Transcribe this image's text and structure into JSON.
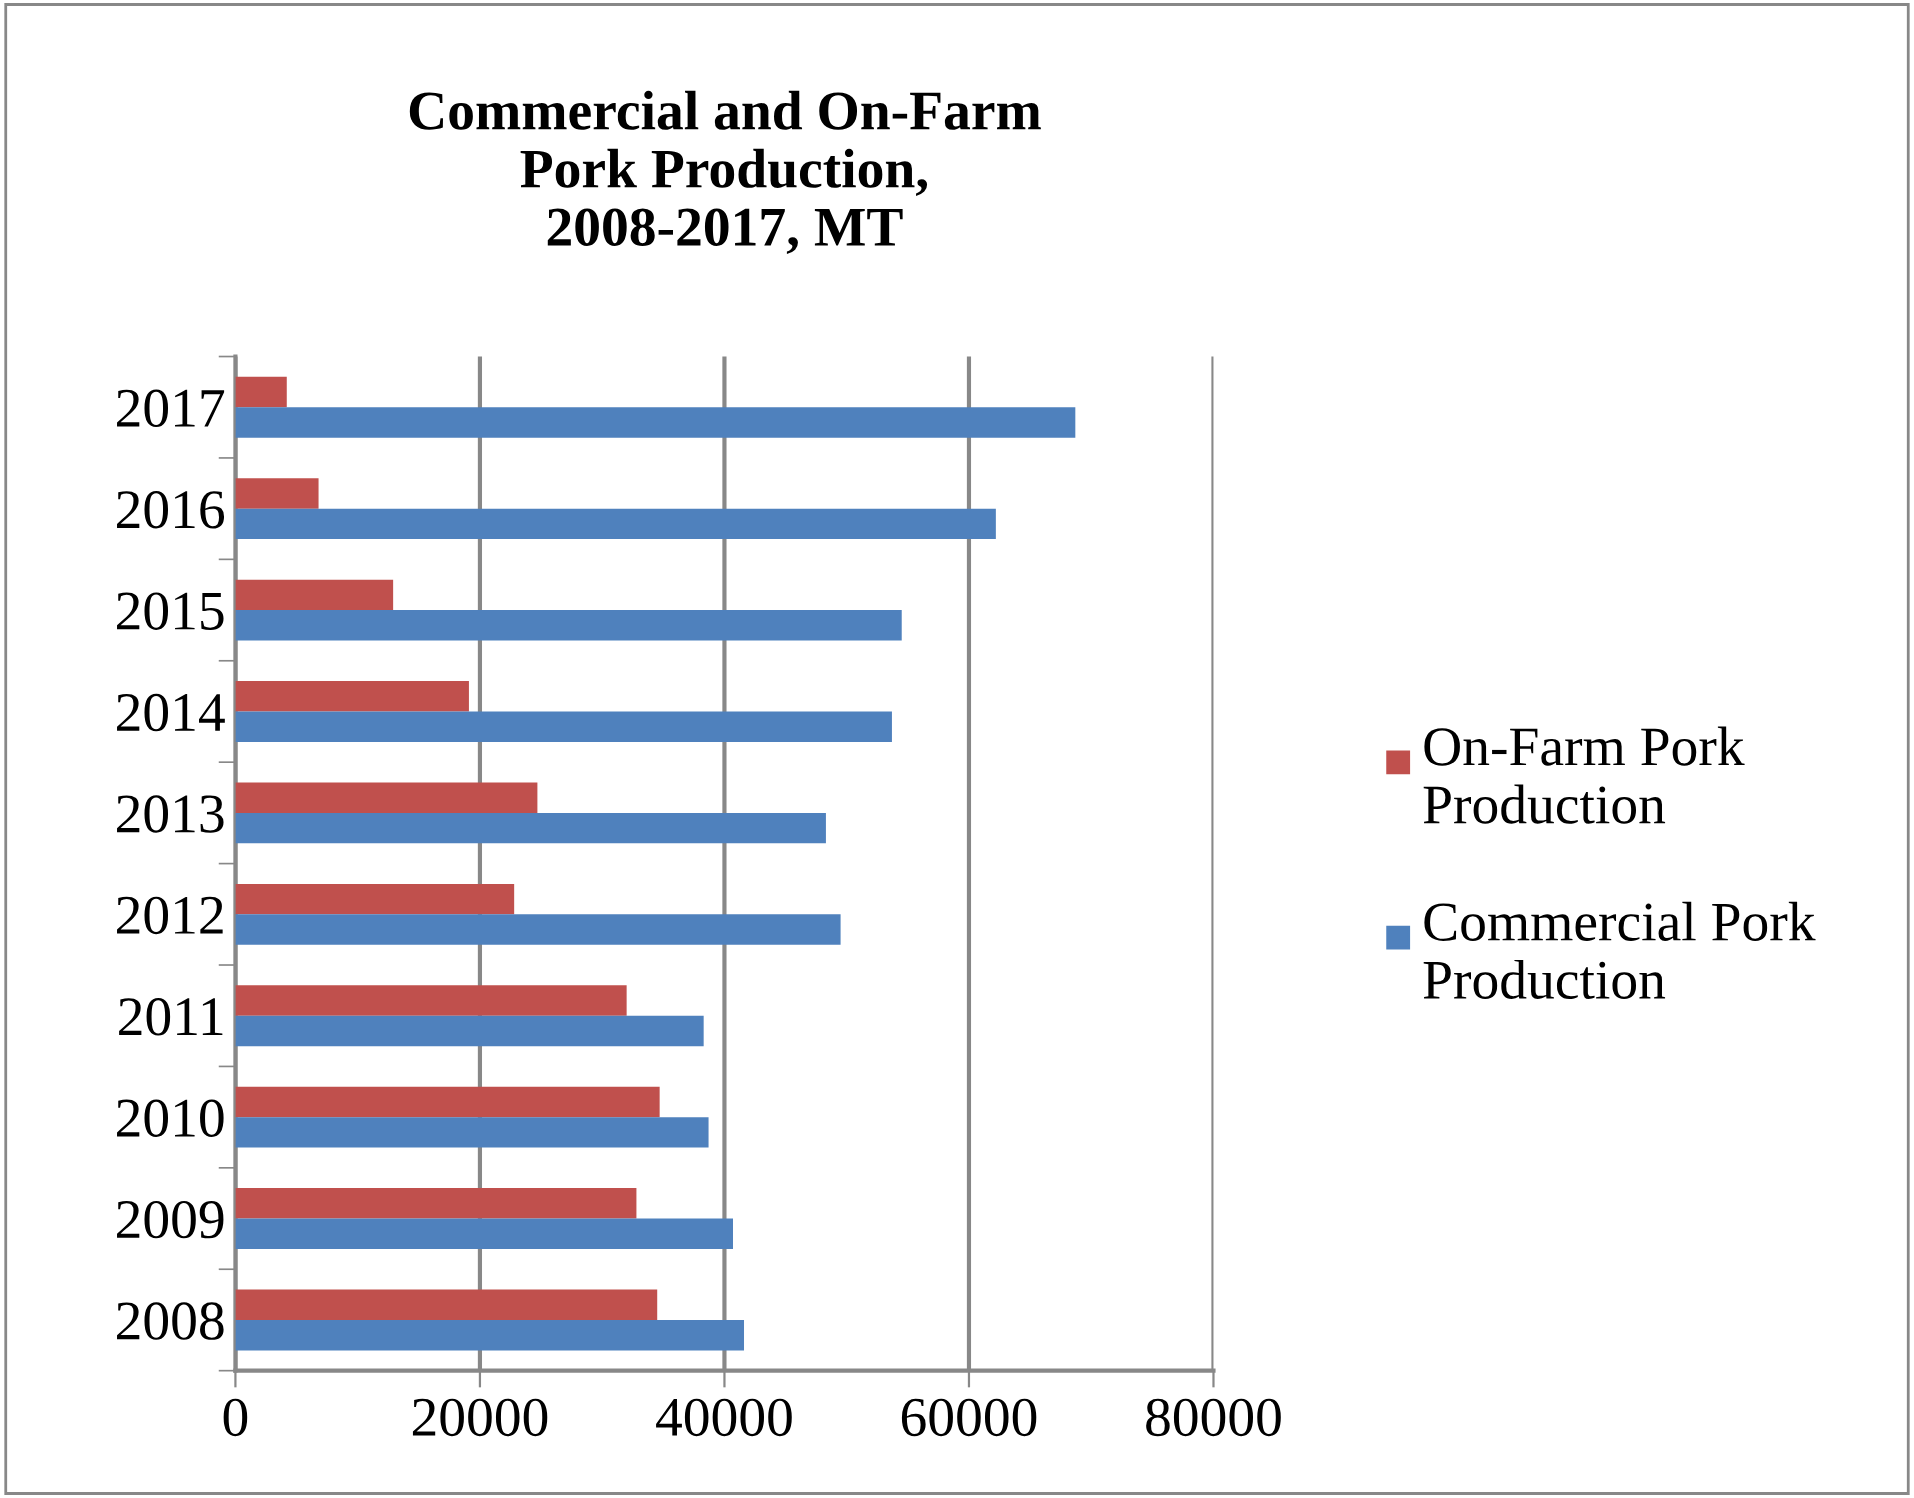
{
  "chart_data": {
    "type": "bar",
    "orientation": "horizontal",
    "title": "Commercial and On-Farm\nPork Production,\n2008-2017, MT",
    "categories": [
      "2017",
      "2016",
      "2015",
      "2014",
      "2013",
      "2012",
      "2011",
      "2010",
      "2009",
      "2008"
    ],
    "series": [
      {
        "name": "On-Farm Pork Production",
        "color": "#c0504d",
        "values": [
          4200,
          6800,
          12900,
          19100,
          24700,
          22800,
          32000,
          34700,
          32800,
          34500
        ]
      },
      {
        "name": "Commercial Pork Production",
        "color": "#4f81bd",
        "values": [
          68700,
          62200,
          54500,
          53700,
          48300,
          49500,
          38300,
          38700,
          40700,
          41600
        ]
      }
    ],
    "xlim": [
      0,
      80000
    ],
    "xticks": [
      0,
      20000,
      40000,
      60000,
      80000
    ],
    "grid": "x",
    "legend": "right"
  }
}
